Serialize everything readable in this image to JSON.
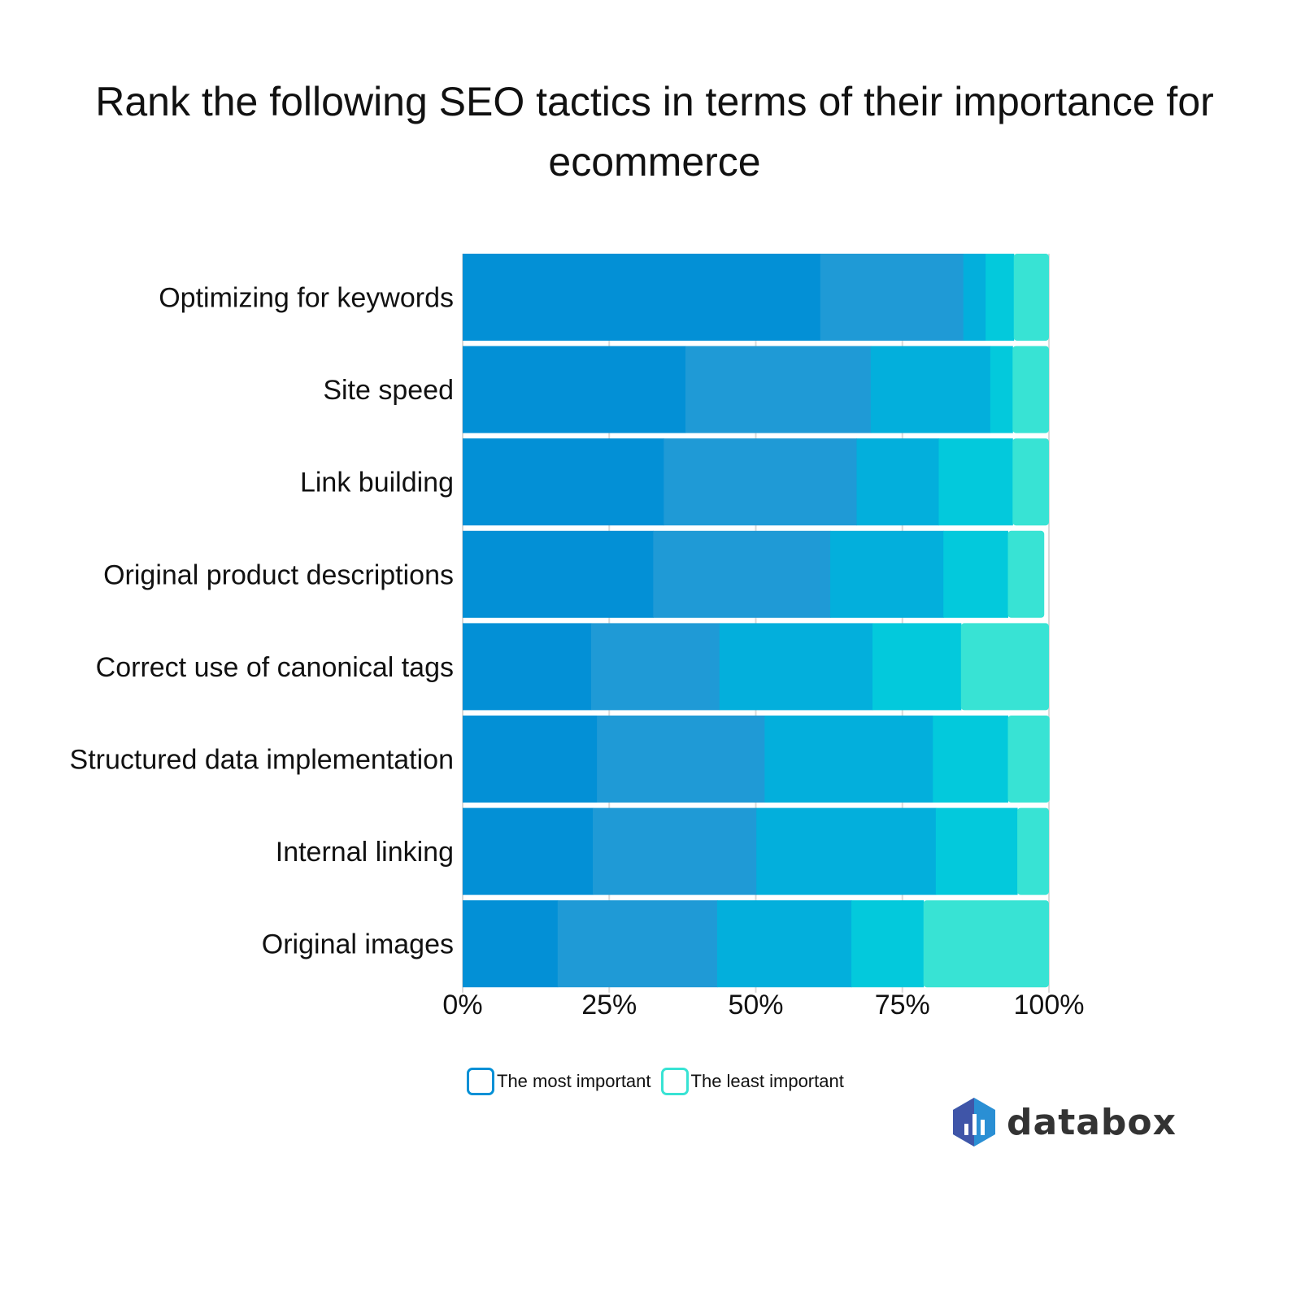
{
  "chart_data": {
    "type": "bar",
    "orientation": "horizontal",
    "stacked": true,
    "title": "Rank the following SEO tactics in terms of their importance for ecommerce",
    "categories": [
      "Optimizing for keywords",
      "Site speed",
      "Link building",
      "Original product descriptions",
      "Correct use of canonical tags",
      "Structured data implementation",
      "Internal linking",
      "Original images"
    ],
    "series": [
      {
        "name": "The most important",
        "color": "#0390d6",
        "values": [
          61.0,
          38.0,
          34.3,
          32.5,
          21.9,
          22.9,
          22.2,
          16.2
        ]
      },
      {
        "color": "#1f9ad6",
        "values": [
          24.4,
          31.6,
          32.9,
          30.2,
          21.9,
          28.6,
          27.9,
          27.2
        ]
      },
      {
        "color": "#03afdc",
        "values": [
          3.8,
          20.4,
          14.0,
          19.3,
          26.1,
          28.7,
          30.6,
          22.9
        ]
      },
      {
        "color": "#03c9dc",
        "values": [
          4.8,
          3.8,
          12.6,
          11.0,
          15.1,
          12.8,
          13.9,
          12.3
        ]
      },
      {
        "name": "The least important",
        "color": "#38e3d4",
        "values": [
          6.0,
          6.2,
          6.2,
          6.2,
          15.0,
          7.1,
          5.4,
          21.4
        ]
      }
    ],
    "xlim": [
      0,
      100
    ],
    "xticks": [
      "0%",
      "25%",
      "50%",
      "75%",
      "100%"
    ],
    "grid": true,
    "legend_placement": "bottom"
  },
  "legend": {
    "most": "The most important",
    "least": "The least important"
  },
  "logo": {
    "text": "databox"
  }
}
